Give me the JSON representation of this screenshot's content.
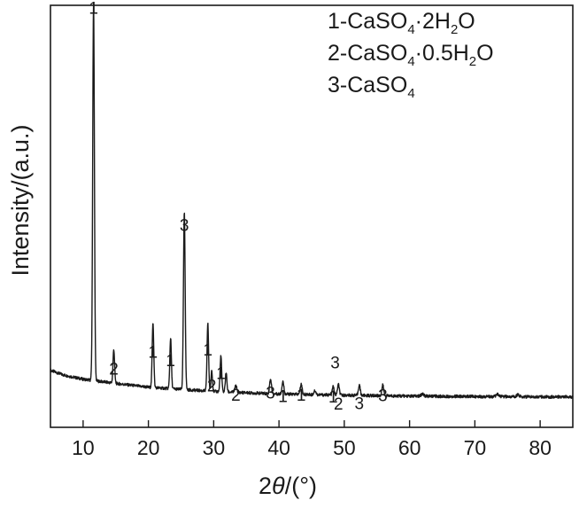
{
  "chart_data": {
    "type": "line",
    "title": "",
    "xlabel": "2θ/(°)",
    "xlabel_parts": {
      "symbol": "2",
      "theta": "θ",
      "unit": "/(°)"
    },
    "ylabel": "Intensity/(a.u.)",
    "xlim": [
      5,
      85
    ],
    "ylim": [
      0,
      100
    ],
    "x_ticks": [
      10,
      20,
      30,
      40,
      50,
      60,
      70,
      80
    ],
    "y_ticks": [],
    "grid": false,
    "legend_position": "top-right",
    "legend": [
      {
        "prefix": "1-CaSO",
        "sub1": "4",
        "mid": "·2H",
        "sub2": "2",
        "suffix": "O"
      },
      {
        "prefix": "2-CaSO",
        "sub1": "4",
        "mid": "·0.5H",
        "sub2": "2",
        "suffix": "O"
      },
      {
        "prefix": "3-CaSO",
        "sub1": "4",
        "mid": "",
        "sub2": "",
        "suffix": ""
      }
    ],
    "baseline": {
      "x": [
        5,
        7,
        10,
        15,
        20,
        25,
        30,
        40,
        50,
        60,
        70,
        85
      ],
      "y": [
        13.5,
        12.4,
        11.4,
        10.4,
        9.5,
        9.0,
        8.5,
        7.9,
        7.6,
        7.4,
        7.3,
        7.2
      ]
    },
    "peaks": [
      {
        "x": 11.6,
        "h": 89.5,
        "w": 0.13,
        "label": "1",
        "label_y": 98
      },
      {
        "x": 14.7,
        "h": 8.0,
        "w": 0.12,
        "label": "2",
        "label_y": 12.5
      },
      {
        "x": 20.7,
        "h": 15.5,
        "w": 0.12,
        "label": "1",
        "label_y": 16.5
      },
      {
        "x": 23.4,
        "h": 12.0,
        "w": 0.12,
        "label": "1",
        "label_y": 14.5
      },
      {
        "x": 25.5,
        "h": 42.0,
        "w": 0.13,
        "label": "3",
        "label_y": 46.5
      },
      {
        "x": 29.1,
        "h": 16.0,
        "w": 0.12,
        "label": "1",
        "label_y": 17.0
      },
      {
        "x": 29.7,
        "h": 5.0,
        "w": 0.11,
        "label": "2",
        "label_y": 8.5
      },
      {
        "x": 31.1,
        "h": 8.5,
        "w": 0.12,
        "label": "1",
        "label_y": 11.5
      },
      {
        "x": 31.9,
        "h": 4.5,
        "w": 0.12,
        "label": "",
        "label_y": 0
      },
      {
        "x": 33.4,
        "h": 1.5,
        "w": 0.15,
        "label": "2",
        "label_y": 6.3
      },
      {
        "x": 38.7,
        "h": 3.5,
        "w": 0.14,
        "label": "3",
        "label_y": 6.8
      },
      {
        "x": 40.6,
        "h": 3.0,
        "w": 0.14,
        "label": "1",
        "label_y": 6.0
      },
      {
        "x": 43.4,
        "h": 2.5,
        "w": 0.14,
        "label": "1",
        "label_y": 6.3
      },
      {
        "x": 45.5,
        "h": 1.0,
        "w": 0.15,
        "label": "",
        "label_y": 0
      },
      {
        "x": 48.3,
        "h": 2.0,
        "w": 0.14,
        "label": "1",
        "label_y": 5.9
      },
      {
        "x": 48.6,
        "h": 0,
        "w": 0.14,
        "label": "3",
        "label_y": 14.0
      },
      {
        "x": 49.1,
        "h": 2.5,
        "w": 0.14,
        "label": "2",
        "label_y": 4.2
      },
      {
        "x": 52.3,
        "h": 2.5,
        "w": 0.14,
        "label": "3",
        "label_y": 4.3
      },
      {
        "x": 55.9,
        "h": 2.5,
        "w": 0.14,
        "label": "3",
        "label_y": 6.2
      },
      {
        "x": 62.0,
        "h": 0.6,
        "w": 0.2,
        "label": "",
        "label_y": 0
      },
      {
        "x": 73.5,
        "h": 0.5,
        "w": 0.2,
        "label": "",
        "label_y": 0
      },
      {
        "x": 76.6,
        "h": 0.5,
        "w": 0.2,
        "label": "",
        "label_y": 0
      }
    ]
  },
  "colors": {
    "line": "#1a1a1a",
    "axis": "#1a1a1a",
    "background": "#ffffff"
  }
}
